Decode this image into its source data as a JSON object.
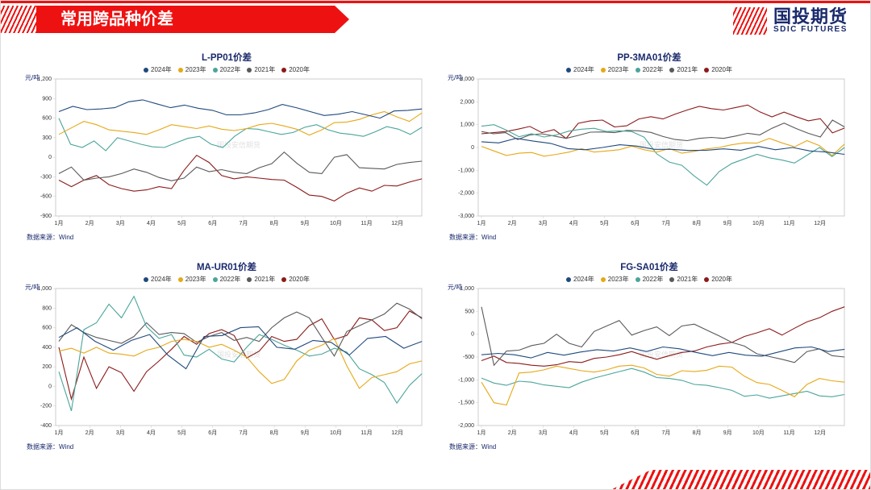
{
  "header": {
    "title": "常用跨品种价差",
    "logo_cn": "国投期货",
    "logo_en": "SDIC FUTURES"
  },
  "global": {
    "y_unit_label": "元/吨",
    "source_label": "数据来源：Wind",
    "watermark": "国投安信期货",
    "x_labels": [
      "1月",
      "2月",
      "3月",
      "4月",
      "5月",
      "6月",
      "7月",
      "8月",
      "9月",
      "10月",
      "11月",
      "12月"
    ],
    "legend_fontsize": 8,
    "title_fontsize": 11.5,
    "axis_fontsize": 7,
    "line_width": 1.1,
    "grid_color": "#cccccc",
    "background_color": "#ffffff",
    "series_meta": [
      {
        "name": "2024年",
        "color": "#1f497d"
      },
      {
        "name": "2023年",
        "color": "#e6a817"
      },
      {
        "name": "2022年",
        "color": "#4aa59a"
      },
      {
        "name": "2021年",
        "color": "#595959"
      },
      {
        "name": "2020年",
        "color": "#8b1a1a"
      }
    ]
  },
  "panels": [
    {
      "title": "L-PP01价差",
      "yticks": [
        -900,
        -600,
        -300,
        0,
        300,
        600,
        900,
        1200
      ],
      "series": {
        "2024": [
          700,
          780,
          730,
          740,
          760,
          850,
          880,
          820,
          760,
          800,
          750,
          720,
          650,
          650,
          680,
          730,
          810,
          760,
          700,
          640,
          660,
          700,
          650,
          600,
          710,
          720,
          740
        ],
        "2023": [
          350,
          450,
          550,
          500,
          420,
          400,
          380,
          350,
          420,
          500,
          470,
          440,
          480,
          430,
          410,
          440,
          500,
          520,
          480,
          430,
          340,
          420,
          530,
          540,
          580,
          650,
          700,
          620,
          550,
          680
        ],
        "2022": [
          600,
          200,
          150,
          250,
          100,
          300,
          250,
          200,
          160,
          150,
          220,
          290,
          320,
          200,
          150,
          320,
          440,
          430,
          390,
          350,
          380,
          460,
          500,
          420,
          370,
          350,
          320,
          390,
          470,
          430,
          350,
          460
        ],
        "2021": [
          -250,
          -150,
          -350,
          -320,
          -300,
          -250,
          -180,
          -230,
          -310,
          -360,
          -320,
          -150,
          -220,
          -190,
          -230,
          -250,
          -160,
          -100,
          80,
          -90,
          -230,
          -250,
          0,
          40,
          -160,
          -170,
          -180,
          -110,
          -80,
          -60
        ],
        "2020": [
          -350,
          -450,
          -350,
          -280,
          -420,
          -480,
          -520,
          -500,
          -450,
          -480,
          -200,
          30,
          -80,
          -280,
          -330,
          -300,
          -320,
          -340,
          -350,
          -460,
          -580,
          -600,
          -670,
          -550,
          -470,
          -520,
          -430,
          -440,
          -380,
          -330
        ]
      }
    },
    {
      "title": "PP-3MA01价差",
      "yticks": [
        -3000,
        -2000,
        -1000,
        0,
        1000,
        2000,
        3000
      ],
      "series": {
        "2024": [
          250,
          200,
          400,
          280,
          180,
          -50,
          -100,
          0,
          120,
          60,
          -80,
          -80,
          -130,
          -120,
          -60,
          -120,
          50,
          -100,
          0,
          -150,
          -200,
          -300
        ],
        "2023": [
          50,
          -150,
          -350,
          -250,
          -220,
          -380,
          -300,
          -200,
          -50,
          -200,
          -150,
          -100,
          60,
          -100,
          -200,
          -50,
          -250,
          -170,
          -60,
          0,
          120,
          200,
          190,
          400,
          200,
          30,
          300,
          80,
          -350,
          150
        ],
        "2022": [
          930,
          1000,
          760,
          470,
          600,
          460,
          550,
          720,
          800,
          840,
          700,
          730,
          700,
          450,
          -280,
          -640,
          -780,
          -1250,
          -1650,
          -1050,
          -700,
          -500,
          -300,
          -450,
          -550,
          -680,
          -340,
          0,
          -400,
          0
        ],
        "2021": [
          700,
          600,
          650,
          350,
          550,
          600,
          500,
          400,
          530,
          670,
          680,
          650,
          750,
          730,
          660,
          480,
          350,
          300,
          400,
          440,
          400,
          500,
          620,
          550,
          840,
          1070,
          830,
          620,
          460,
          1200,
          900
        ],
        "2020": [
          600,
          650,
          700,
          800,
          920,
          650,
          780,
          400,
          1060,
          1170,
          1200,
          900,
          950,
          1250,
          1350,
          1250,
          1460,
          1640,
          1800,
          1700,
          1640,
          1750,
          1860,
          1560,
          1340,
          1550,
          1350,
          1170,
          1260,
          640,
          850
        ]
      }
    },
    {
      "title": "MA-UR01价差",
      "yticks": [
        -400,
        -200,
        0,
        200,
        400,
        600,
        800,
        1000
      ],
      "series": {
        "2024": [
          500,
          600,
          460,
          370,
          470,
          530,
          320,
          180,
          510,
          520,
          600,
          610,
          400,
          380,
          470,
          450,
          320,
          490,
          510,
          390,
          460
        ],
        "2023": [
          360,
          390,
          340,
          400,
          340,
          330,
          310,
          370,
          400,
          460,
          480,
          460,
          400,
          430,
          370,
          300,
          150,
          30,
          70,
          260,
          370,
          420,
          490,
          210,
          -20,
          90,
          120,
          150,
          230,
          260
        ],
        "2022": [
          150,
          -250,
          580,
          650,
          840,
          700,
          920,
          610,
          490,
          530,
          320,
          300,
          380,
          280,
          250,
          400,
          530,
          480,
          420,
          370,
          310,
          330,
          390,
          350,
          180,
          120,
          40,
          -170,
          10,
          130
        ],
        "2021": [
          460,
          630,
          550,
          500,
          470,
          440,
          510,
          650,
          530,
          550,
          540,
          450,
          510,
          550,
          470,
          500,
          460,
          600,
          700,
          760,
          700,
          500,
          310,
          560,
          620,
          680,
          740,
          850,
          790,
          690
        ],
        "2020": [
          400,
          -130,
          300,
          -20,
          200,
          140,
          -50,
          150,
          260,
          380,
          510,
          430,
          540,
          580,
          520,
          290,
          360,
          510,
          460,
          480,
          620,
          690,
          480,
          520,
          700,
          680,
          570,
          600,
          770,
          700
        ]
      }
    },
    {
      "title": "FG-SA01价差",
      "yticks": [
        -2000,
        -1500,
        -1000,
        -500,
        0,
        500,
        1000
      ],
      "series": {
        "2024": [
          -450,
          -420,
          -450,
          -520,
          -400,
          -460,
          -390,
          -340,
          -370,
          -300,
          -380,
          -280,
          -320,
          -400,
          -470,
          -400,
          -460,
          -480,
          -390,
          -300,
          -280,
          -380,
          -330
        ],
        "2023": [
          -1050,
          -1500,
          -1550,
          -850,
          -830,
          -780,
          -700,
          -750,
          -800,
          -830,
          -780,
          -700,
          -680,
          -740,
          -880,
          -920,
          -800,
          -820,
          -790,
          -700,
          -720,
          -920,
          -1060,
          -1100,
          -1230,
          -1370,
          -1100,
          -970,
          -1020,
          -1050
        ],
        "2022": [
          -960,
          -1070,
          -1120,
          -1030,
          -1050,
          -1110,
          -1140,
          -1170,
          -1050,
          -960,
          -890,
          -820,
          -750,
          -830,
          -950,
          -970,
          -1010,
          -1100,
          -1120,
          -1170,
          -1230,
          -1360,
          -1330,
          -1400,
          -1350,
          -1300,
          -1250,
          -1350,
          -1370,
          -1320
        ],
        "2021": [
          600,
          -680,
          -370,
          -350,
          -250,
          -200,
          0,
          -200,
          -280,
          60,
          180,
          300,
          -20,
          80,
          160,
          -30,
          180,
          220,
          90,
          -40,
          -180,
          -260,
          -430,
          -490,
          -550,
          -620,
          -380,
          -320,
          -470,
          -500
        ],
        "2020": [
          -580,
          -480,
          -620,
          -640,
          -680,
          -700,
          -670,
          -600,
          -620,
          -530,
          -500,
          -450,
          -380,
          -470,
          -550,
          -470,
          -400,
          -370,
          -280,
          -220,
          -180,
          -50,
          30,
          120,
          -20,
          130,
          270,
          360,
          500,
          600
        ]
      }
    }
  ]
}
